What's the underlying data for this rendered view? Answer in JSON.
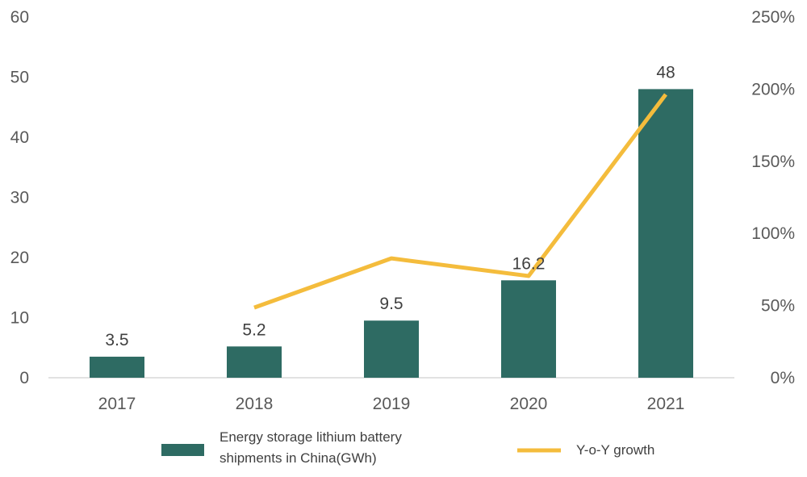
{
  "chart_data": {
    "type": "bar",
    "categories": [
      "2017",
      "2018",
      "2019",
      "2020",
      "2021"
    ],
    "series": [
      {
        "name": "Energy storage lithium battery shipments in China(GWh)",
        "type": "bar",
        "axis": "left",
        "values": [
          3.5,
          5.2,
          9.5,
          16.2,
          48
        ],
        "data_labels": [
          "3.5",
          "5.2",
          "9.5",
          "16.2",
          "48"
        ],
        "color": "#2E6B63"
      },
      {
        "name": "Y-o-Y growth",
        "type": "line",
        "axis": "right",
        "values": [
          null,
          0.486,
          0.827,
          0.705,
          1.963
        ],
        "color": "#F4BC3C"
      }
    ],
    "y_left": {
      "ylim": [
        0,
        60
      ],
      "ticks": [
        "0",
        "10",
        "20",
        "30",
        "40",
        "50",
        "60"
      ]
    },
    "y_right": {
      "ylim": [
        0,
        2.5
      ],
      "ticks": [
        "0%",
        "50%",
        "100%",
        "150%",
        "200%",
        "250%"
      ]
    },
    "grid": false,
    "legend": {
      "placement": "bottom",
      "items": [
        {
          "label_lines": [
            "Energy storage lithium battery",
            "shipments in China(GWh)"
          ],
          "marker": "box",
          "color": "#2E6B63"
        },
        {
          "label_lines": [
            "Y-o-Y growth"
          ],
          "marker": "line",
          "color": "#F4BC3C"
        }
      ]
    }
  }
}
